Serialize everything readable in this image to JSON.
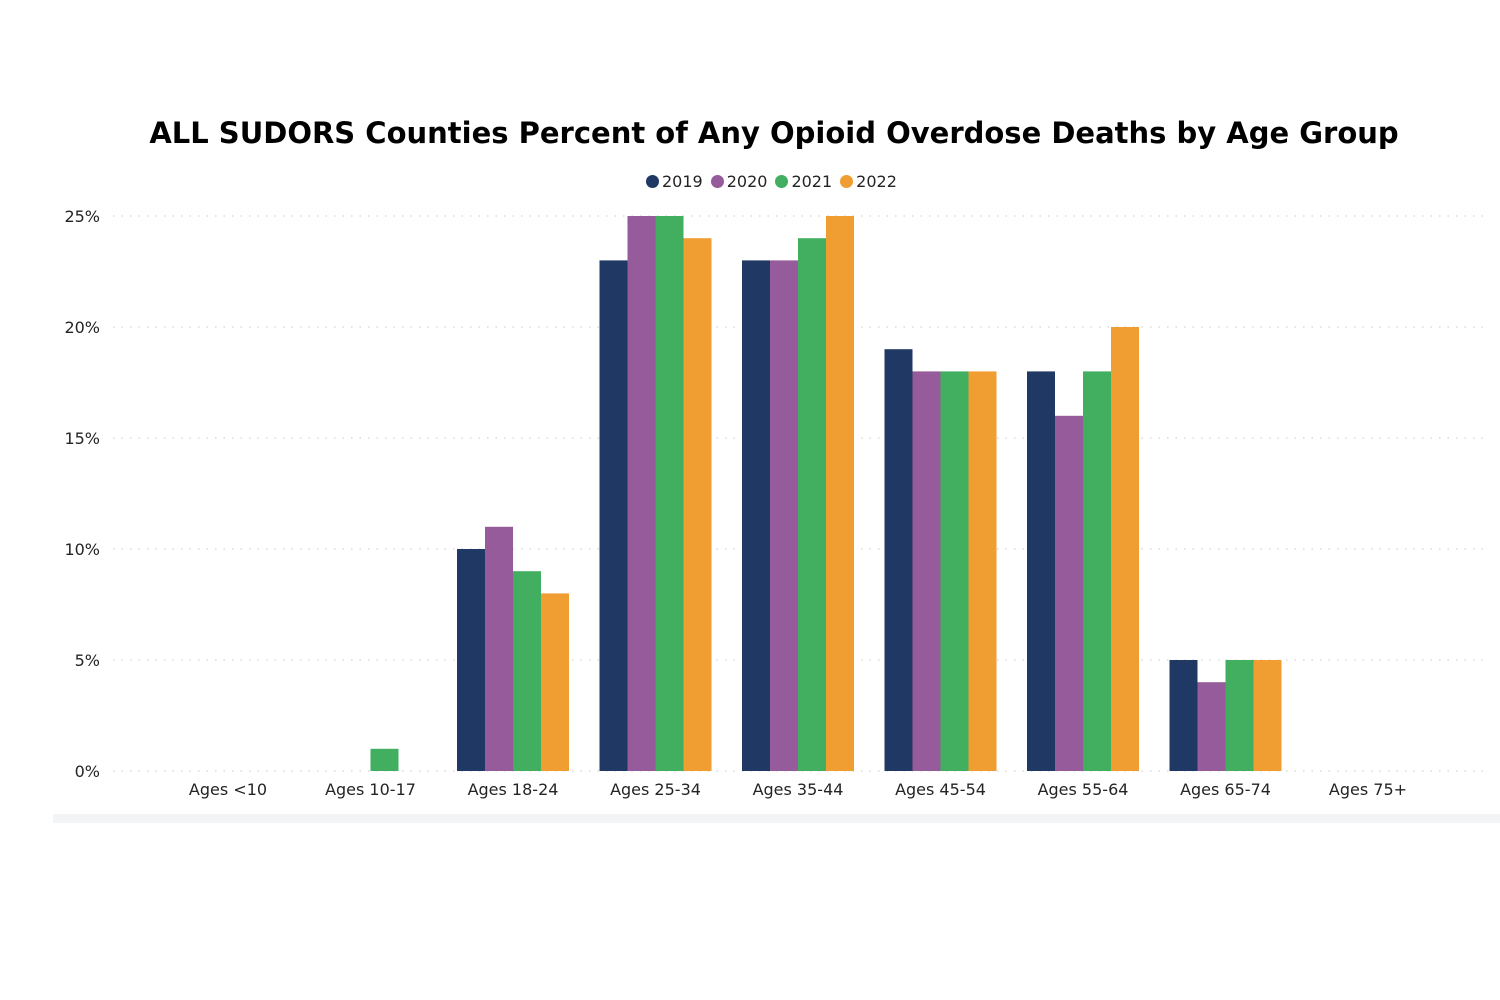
{
  "chart_data": {
    "type": "bar",
    "title": "ALL SUDORS Counties Percent of Any Opioid Overdose Deaths by Age Group",
    "categories": [
      "Ages <10",
      "Ages 10-17",
      "Ages 18-24",
      "Ages 25-34",
      "Ages 35-44",
      "Ages 45-54",
      "Ages 55-64",
      "Ages 65-74",
      "Ages 75+"
    ],
    "series": [
      {
        "name": "2019",
        "color": "#1f3864",
        "values": [
          0,
          0,
          10,
          23,
          23,
          19,
          18,
          5,
          0
        ]
      },
      {
        "name": "2020",
        "color": "#955b9a",
        "values": [
          0,
          0,
          11,
          25,
          23,
          18,
          16,
          4,
          0
        ]
      },
      {
        "name": "2021",
        "color": "#41ae60",
        "values": [
          0,
          1,
          9,
          25,
          24,
          18,
          18,
          5,
          0
        ]
      },
      {
        "name": "2022",
        "color": "#f09d32",
        "values": [
          0,
          0,
          8,
          24,
          25,
          18,
          20,
          5,
          0
        ]
      }
    ],
    "yticks": [
      "0%",
      "5%",
      "10%",
      "15%",
      "20%",
      "25%"
    ],
    "ylim": [
      0,
      25
    ],
    "ylabel": "",
    "xlabel": "",
    "grid": true,
    "legend_placement": "top-center"
  }
}
